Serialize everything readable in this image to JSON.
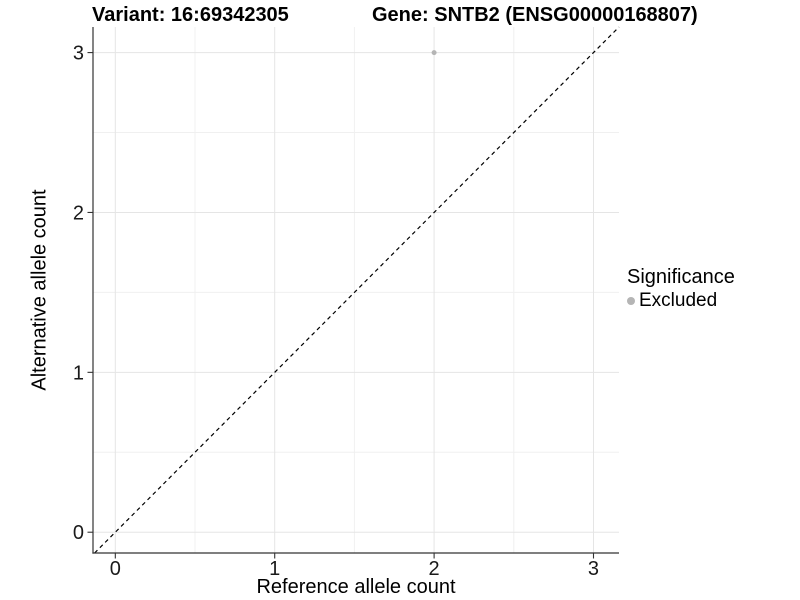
{
  "chart_data": {
    "type": "scatter",
    "titles": {
      "left": "Variant: 16:69342305",
      "right": "Gene: SNTB2 (ENSG00000168807)"
    },
    "xlabel": "Reference allele count",
    "ylabel": "Alternative allele count",
    "xlim": [
      -0.14,
      3.16
    ],
    "ylim": [
      -0.13,
      3.16
    ],
    "x_ticks": [
      0,
      1,
      2,
      3
    ],
    "y_ticks": [
      0,
      1,
      2,
      3
    ],
    "x_minor_ticks": [
      0.5,
      1.5,
      2.5
    ],
    "y_minor_ticks": [
      0.5,
      1.5,
      2.5
    ],
    "grid": "major and minor gridlines, white panel, axis lines on left and bottom only",
    "series": [
      {
        "name": "Excluded",
        "color": "#b5b5b5",
        "points": [
          {
            "x": 2,
            "y": 3
          }
        ]
      }
    ],
    "identity_line": {
      "slope": 1,
      "intercept": 0,
      "linetype": "dashed",
      "color": "#000000"
    },
    "legend": {
      "title": "Significance",
      "position": "right",
      "entries": [
        {
          "label": "Excluded",
          "marker": "circle",
          "color": "#b5b5b5"
        }
      ]
    },
    "style": {
      "background": "#ffffff",
      "grid_major_color": "#e5e5e5",
      "grid_minor_color": "#f0f0f0",
      "axis_color": "#333333",
      "tick_label_color": "#1a1a1a",
      "point_radius": 2.5
    }
  }
}
